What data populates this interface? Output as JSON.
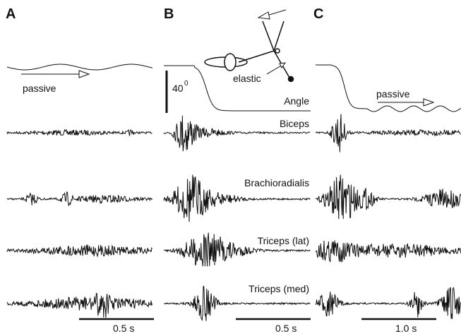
{
  "panels": [
    "A",
    "B",
    "C"
  ],
  "annotations": {
    "passive_a": "passive",
    "passive_c": "passive",
    "elastic": "elastic",
    "angle_scale": "40",
    "angle_scale_superscript": "0"
  },
  "trace_labels": [
    "Angle",
    "Biceps",
    "Brachioradialis",
    "Triceps (lat)",
    "Triceps (med)"
  ],
  "time_scale_bars": [
    "0.5 s",
    "0.5 s",
    "1.0 s"
  ]
}
